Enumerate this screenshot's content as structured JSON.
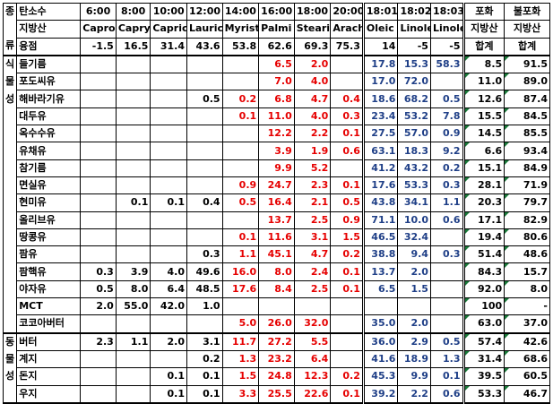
{
  "header": {
    "row1": {
      "group": "종",
      "label": "탄소수",
      "carbons": [
        "6:00",
        "8:00",
        "10:00",
        "12:00",
        "14:00",
        "16:00",
        "18:00",
        "20:00",
        "18:01",
        "18:02",
        "18:03"
      ],
      "sat": "포화",
      "unsat": "불포화"
    },
    "row2": {
      "label": "지방산",
      "acids": [
        "Capro",
        "Capry",
        "Capric",
        "Lauric",
        "Myrist",
        "Palmi",
        "Steari",
        "Arachi",
        "Oleic",
        "Linolei",
        "Linoler"
      ],
      "sat": "지방산",
      "unsat": "지방산"
    },
    "row3": {
      "group": "류",
      "label": "융점",
      "points": [
        "-1.5",
        "16.5",
        "31.4",
        "43.6",
        "53.8",
        "62.6",
        "69.3",
        "75.3",
        "14",
        "-5",
        "-5"
      ],
      "sat": "합계",
      "unsat": "합계"
    }
  },
  "groups": {
    "plant": [
      "식",
      "물",
      "성"
    ],
    "animal": [
      "동",
      "물",
      "성"
    ]
  },
  "plant_rows": [
    {
      "name": "들기름",
      "v": [
        "",
        "",
        "",
        "",
        "",
        "6.5",
        "2.0",
        "",
        "17.8",
        "15.3",
        "58.3"
      ],
      "sat": "8.5",
      "unsat": "91.5"
    },
    {
      "name": "포도씨유",
      "v": [
        "",
        "",
        "",
        "",
        "",
        "7.0",
        "4.0",
        "",
        "17.0",
        "72.0",
        ""
      ],
      "sat": "11.0",
      "unsat": "89.0"
    },
    {
      "name": "해바라기유",
      "v": [
        "",
        "",
        "",
        "0.5",
        "0.2",
        "6.8",
        "4.7",
        "0.4",
        "18.6",
        "68.2",
        "0.5"
      ],
      "sat": "12.6",
      "unsat": "87.4"
    },
    {
      "name": "대두유",
      "v": [
        "",
        "",
        "",
        "",
        "0.1",
        "11.0",
        "4.0",
        "0.3",
        "23.4",
        "53.2",
        "7.8"
      ],
      "sat": "15.5",
      "unsat": "84.5"
    },
    {
      "name": "옥수수유",
      "v": [
        "",
        "",
        "",
        "",
        "",
        "12.2",
        "2.2",
        "0.1",
        "27.5",
        "57.0",
        "0.9"
      ],
      "sat": "14.5",
      "unsat": "85.5"
    },
    {
      "name": "유채유",
      "v": [
        "",
        "",
        "",
        "",
        "",
        "3.9",
        "1.9",
        "0.6",
        "63.1",
        "18.3",
        "9.2"
      ],
      "sat": "6.6",
      "unsat": "93.4"
    },
    {
      "name": "참기름",
      "v": [
        "",
        "",
        "",
        "",
        "",
        "9.9",
        "5.2",
        "",
        "41.2",
        "43.2",
        "0.2"
      ],
      "sat": "15.1",
      "unsat": "84.9"
    },
    {
      "name": "면실유",
      "v": [
        "",
        "",
        "",
        "",
        "0.9",
        "24.7",
        "2.3",
        "0.1",
        "17.6",
        "53.3",
        "0.3"
      ],
      "sat": "28.1",
      "unsat": "71.9"
    },
    {
      "name": "현미유",
      "v": [
        "",
        "0.1",
        "0.1",
        "0.4",
        "0.5",
        "16.4",
        "2.1",
        "0.5",
        "43.8",
        "34.1",
        "1.1"
      ],
      "sat": "20.3",
      "unsat": "79.7"
    },
    {
      "name": "올리브유",
      "v": [
        "",
        "",
        "",
        "",
        "",
        "13.7",
        "2.5",
        "0.9",
        "71.1",
        "10.0",
        "0.6"
      ],
      "sat": "17.1",
      "unsat": "82.9"
    },
    {
      "name": "땅콩유",
      "v": [
        "",
        "",
        "",
        "",
        "0.1",
        "11.6",
        "3.1",
        "1.5",
        "46.5",
        "32.4",
        ""
      ],
      "sat": "19.4",
      "unsat": "80.6"
    },
    {
      "name": "팜유",
      "v": [
        "",
        "",
        "",
        "0.3",
        "1.1",
        "45.1",
        "4.7",
        "0.2",
        "38.8",
        "9.4",
        "0.3"
      ],
      "sat": "51.4",
      "unsat": "48.6"
    },
    {
      "name": "팜핵유",
      "v": [
        "0.3",
        "3.9",
        "4.0",
        "49.6",
        "16.0",
        "8.0",
        "2.4",
        "0.1",
        "13.7",
        "2.0",
        ""
      ],
      "sat": "84.3",
      "unsat": "15.7"
    },
    {
      "name": "야자유",
      "v": [
        "0.5",
        "8.0",
        "6.4",
        "48.5",
        "17.6",
        "8.4",
        "2.5",
        "0.1",
        "6.5",
        "1.5",
        ""
      ],
      "sat": "92.0",
      "unsat": "8.0"
    },
    {
      "name": "MCT",
      "v": [
        "2.0",
        "55.0",
        "42.0",
        "1.0",
        "",
        "",
        "",
        "",
        "",
        "",
        ""
      ],
      "sat": "100",
      "unsat": "-"
    },
    {
      "name": "코코아버터",
      "v": [
        "",
        "",
        "",
        "",
        "5.0",
        "26.0",
        "32.0",
        "",
        "35.0",
        "2.0",
        ""
      ],
      "sat": "63.0",
      "unsat": "37.0"
    }
  ],
  "animal_rows": [
    {
      "name": "버터",
      "v": [
        "2.3",
        "1.1",
        "2.0",
        "3.1",
        "11.7",
        "27.2",
        "5.5",
        "",
        "36.0",
        "2.9",
        "0.5"
      ],
      "sat": "57.4",
      "unsat": "42.6"
    },
    {
      "name": "계지",
      "v": [
        "",
        "",
        "",
        "0.2",
        "1.3",
        "23.2",
        "6.4",
        "",
        "41.6",
        "18.9",
        "1.3"
      ],
      "sat": "31.4",
      "unsat": "68.6"
    },
    {
      "name": "돈지",
      "v": [
        "",
        "",
        "0.1",
        "0.1",
        "1.5",
        "24.8",
        "12.3",
        "0.2",
        "45.3",
        "9.9",
        "0.1"
      ],
      "sat": "39.5",
      "unsat": "60.5"
    },
    {
      "name": "우지",
      "v": [
        "",
        "",
        "0.1",
        "0.1",
        "3.3",
        "25.5",
        "22.6",
        "0.1",
        "39.2",
        "2.2",
        "0.6"
      ],
      "sat": "53.3",
      "unsat": "46.7"
    }
  ],
  "colors": {
    "red": "#e60000",
    "blue": "#1f3f87",
    "marker_green": "#1a7a3a"
  }
}
